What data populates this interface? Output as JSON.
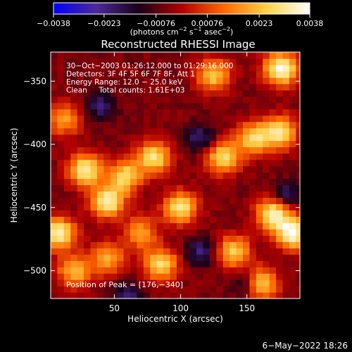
{
  "chart_data": {
    "type": "heatmap",
    "title": "Reconstructed RHESSI Image",
    "xlabel": "Heliocentric X (arcsec)",
    "ylabel": "Heliocentric Y (arcsec)",
    "xlim": [
      2,
      190
    ],
    "ylim": [
      -522,
      -327
    ],
    "x_ticks": [
      50,
      100,
      150
    ],
    "y_ticks": [
      -350,
      -400,
      -450,
      -500
    ],
    "x_tick_labels": [
      "50",
      "100",
      "150"
    ],
    "y_tick_labels": [
      "−350",
      "−400",
      "−450",
      "−500"
    ],
    "colorbar": {
      "min": -0.0038,
      "max": 0.0038,
      "tick_values": [
        -0.0038,
        -0.0023,
        -0.00076,
        0.00076,
        0.0023,
        0.0038
      ],
      "tick_labels": [
        "−0.0038",
        "−0.0023",
        "−0.00076",
        "0.00076",
        "0.0023",
        "0.0038"
      ],
      "unit_main": "(photons cm",
      "unit_sup1": "−2",
      "unit_mid": " s",
      "unit_sup2": "−1",
      "unit_end": " asec",
      "unit_sup3": "−2",
      "unit_close": ")",
      "colors": [
        "#0000ff",
        "#4e2a9a",
        "#180018",
        "#b20000",
        "#ff6a00",
        "#ffd24a",
        "#ffffff"
      ]
    },
    "annotations": [
      "30−Oct−2003 01:26:12.000 to 01:29:16.000",
      "Detectors: 3F 4F 5F 6F 7F 8F, Att 1",
      "Energy Range: 12.0 − 25.0 keV",
      "Clean     Total counts: 1.61E+03"
    ],
    "peak_label": "Position of Peak = [176,−340]",
    "peak": [
      176,
      -340
    ],
    "hot_spots": [
      {
        "x": 176,
        "y": -340,
        "level": 1.0
      },
      {
        "x": 125,
        "y": -345,
        "level": 0.7
      },
      {
        "x": 12,
        "y": -380,
        "level": 0.55
      },
      {
        "x": 28,
        "y": -420,
        "level": 0.85
      },
      {
        "x": 45,
        "y": -445,
        "level": 0.9
      },
      {
        "x": 58,
        "y": -425,
        "level": 0.75
      },
      {
        "x": 80,
        "y": -410,
        "level": 0.8
      },
      {
        "x": 100,
        "y": -450,
        "level": 0.8
      },
      {
        "x": 132,
        "y": -410,
        "level": 0.75
      },
      {
        "x": 155,
        "y": -395,
        "level": 0.75
      },
      {
        "x": 175,
        "y": -390,
        "level": 0.8
      },
      {
        "x": 170,
        "y": -455,
        "level": 0.9
      },
      {
        "x": 185,
        "y": -470,
        "level": 0.95
      },
      {
        "x": 8,
        "y": -470,
        "level": 0.9
      },
      {
        "x": 20,
        "y": -500,
        "level": 0.65
      },
      {
        "x": 45,
        "y": -490,
        "level": 0.6
      },
      {
        "x": 70,
        "y": -470,
        "level": 0.55
      },
      {
        "x": 85,
        "y": -495,
        "level": 0.75
      },
      {
        "x": 140,
        "y": -485,
        "level": 0.7
      },
      {
        "x": 160,
        "y": -510,
        "level": 0.8
      }
    ],
    "cold_spots": [
      {
        "x": 40,
        "y": -370
      },
      {
        "x": 115,
        "y": -395
      },
      {
        "x": 60,
        "y": -520
      },
      {
        "x": 115,
        "y": -485
      },
      {
        "x": 150,
        "y": -510
      },
      {
        "x": 180,
        "y": -440
      }
    ],
    "timestamp": "6−May−2022 18:26"
  }
}
